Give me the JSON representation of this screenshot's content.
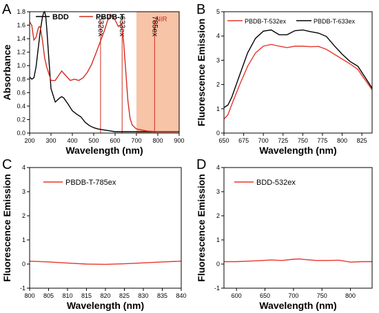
{
  "chart_data": [
    {
      "panel": "A",
      "type": "line",
      "xlabel": "Wavelength (nm)",
      "ylabel": "Absorbance",
      "xlim": [
        200,
        900
      ],
      "ylim": [
        0,
        1.8
      ],
      "xticks": [
        200,
        300,
        400,
        500,
        600,
        700,
        800,
        900
      ],
      "yticks": [
        0.0,
        0.2,
        0.4,
        0.6,
        0.8,
        1.0,
        1.2,
        1.4,
        1.6,
        1.8
      ],
      "legend": "top-left",
      "shaded_region": {
        "label": "NIR",
        "x0": 700,
        "x1": 900,
        "color": "#f7c4a8"
      },
      "vlines": [
        {
          "x": 532,
          "label": "532ex"
        },
        {
          "x": 633,
          "label": "633ex"
        },
        {
          "x": 785,
          "label": "785ex"
        }
      ],
      "series": [
        {
          "name": "BDD",
          "color": "#000000",
          "x": [
            200,
            210,
            220,
            230,
            240,
            250,
            260,
            265,
            270,
            275,
            280,
            290,
            300,
            320,
            340,
            350,
            360,
            380,
            400,
            420,
            440,
            460,
            480,
            500,
            520,
            540,
            560,
            580,
            600,
            650,
            700,
            800,
            900
          ],
          "y": [
            0.83,
            0.8,
            0.82,
            0.98,
            1.25,
            1.52,
            1.72,
            1.78,
            1.8,
            1.74,
            1.56,
            1.1,
            0.66,
            0.46,
            0.52,
            0.54,
            0.52,
            0.43,
            0.33,
            0.28,
            0.24,
            0.16,
            0.11,
            0.08,
            0.06,
            0.05,
            0.04,
            0.03,
            0.02,
            0.02,
            0.02,
            0.02,
            0.02
          ]
        },
        {
          "name": "PBDB-T",
          "color": "#d42a20",
          "x": [
            200,
            210,
            220,
            230,
            240,
            245,
            250,
            260,
            270,
            280,
            300,
            320,
            350,
            370,
            390,
            410,
            430,
            450,
            470,
            490,
            510,
            530,
            550,
            565,
            580,
            600,
            615,
            630,
            640,
            650,
            660,
            670,
            680,
            700,
            750,
            800,
            900
          ],
          "y": [
            1.65,
            1.6,
            1.38,
            1.42,
            1.55,
            1.58,
            1.57,
            1.38,
            1.12,
            0.98,
            0.78,
            0.78,
            0.92,
            0.85,
            0.78,
            0.8,
            0.78,
            0.82,
            0.9,
            1.02,
            1.18,
            1.35,
            1.52,
            1.67,
            1.76,
            1.68,
            1.58,
            1.62,
            1.35,
            0.92,
            0.48,
            0.22,
            0.12,
            0.06,
            0.03,
            0.02,
            0.02
          ]
        }
      ]
    },
    {
      "panel": "B",
      "type": "line",
      "xlabel": "Wavelength (nm)",
      "ylabel": "Fluorescence Emission",
      "xlim": [
        650,
        838
      ],
      "ylim": [
        0,
        5
      ],
      "xticks": [
        650,
        675,
        700,
        725,
        750,
        775,
        800,
        825
      ],
      "yticks": [
        0,
        1,
        2,
        3,
        4,
        5
      ],
      "legend": "top",
      "series": [
        {
          "name": "PBDB-T-532ex",
          "color": "#e8362c",
          "x": [
            650,
            655,
            660,
            670,
            680,
            690,
            700,
            710,
            720,
            730,
            740,
            750,
            760,
            770,
            780,
            790,
            800,
            810,
            820,
            830,
            838
          ],
          "y": [
            0.58,
            0.75,
            1.18,
            2.0,
            2.75,
            3.3,
            3.58,
            3.65,
            3.58,
            3.52,
            3.58,
            3.58,
            3.56,
            3.57,
            3.45,
            3.25,
            3.05,
            2.85,
            2.62,
            2.15,
            1.78
          ]
        },
        {
          "name": "PBDB-T-633ex",
          "color": "#000000",
          "x": [
            650,
            655,
            660,
            670,
            680,
            690,
            700,
            710,
            720,
            730,
            740,
            750,
            760,
            770,
            780,
            790,
            800,
            810,
            820,
            830,
            838
          ],
          "y": [
            1.05,
            1.15,
            1.48,
            2.4,
            3.3,
            3.9,
            4.2,
            4.25,
            4.05,
            4.05,
            4.22,
            4.25,
            4.18,
            4.12,
            3.98,
            3.6,
            3.25,
            2.95,
            2.75,
            2.25,
            1.85
          ]
        }
      ]
    },
    {
      "panel": "C",
      "type": "line",
      "xlabel": "Wavelength (nm)",
      "ylabel": "Fluorescence Emission",
      "xlim": [
        800,
        840
      ],
      "ylim": [
        -1,
        4
      ],
      "xticks": [
        800,
        805,
        810,
        815,
        820,
        825,
        830,
        835,
        840
      ],
      "yticks": [
        -1,
        0,
        1,
        2,
        3,
        4
      ],
      "legend": "top-left",
      "series": [
        {
          "name": "PBDB-T-785ex",
          "color": "#e8362c",
          "x": [
            800,
            805,
            810,
            815,
            820,
            825,
            830,
            835,
            840
          ],
          "y": [
            0.12,
            0.09,
            0.04,
            0.0,
            -0.01,
            0.01,
            0.05,
            0.09,
            0.12
          ]
        }
      ]
    },
    {
      "panel": "D",
      "type": "line",
      "xlabel": "Wavelength (nm)",
      "ylabel": "Fluorescence Emission",
      "xlim": [
        578,
        838
      ],
      "ylim": [
        -1,
        4
      ],
      "xticks": [
        600,
        650,
        700,
        750,
        800
      ],
      "yticks": [
        -1,
        0,
        1,
        2,
        3,
        4
      ],
      "legend": "top-left",
      "series": [
        {
          "name": "BDD-532ex",
          "color": "#e8362c",
          "x": [
            578,
            600,
            620,
            640,
            660,
            680,
            700,
            710,
            720,
            740,
            760,
            780,
            800,
            820,
            838
          ],
          "y": [
            0.1,
            0.1,
            0.12,
            0.14,
            0.17,
            0.15,
            0.2,
            0.21,
            0.19,
            0.15,
            0.15,
            0.16,
            0.08,
            0.1,
            0.1
          ]
        }
      ]
    }
  ]
}
